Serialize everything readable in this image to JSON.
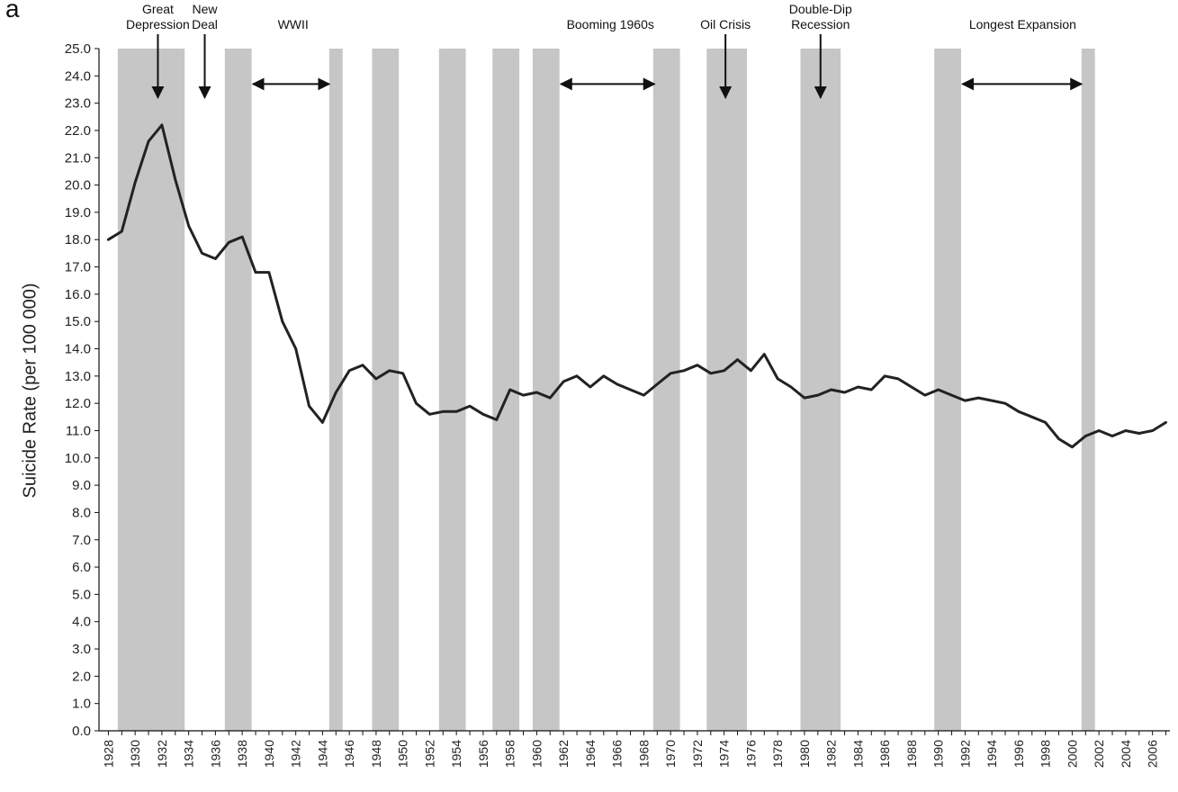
{
  "panel_letter": "a",
  "chart_data": {
    "type": "line",
    "title": "",
    "xlabel": "",
    "ylabel": "Suicide Rate (per 100 000)",
    "xlim": [
      1927.3,
      2007.3
    ],
    "ylim": [
      0,
      25
    ],
    "y_tick_step": 1.0,
    "y_tick_decimals": 1,
    "x_ticks": [
      1928,
      1930,
      1932,
      1934,
      1936,
      1938,
      1940,
      1942,
      1944,
      1946,
      1948,
      1950,
      1952,
      1954,
      1956,
      1958,
      1960,
      1962,
      1964,
      1966,
      1968,
      1970,
      1972,
      1974,
      1976,
      1978,
      1980,
      1982,
      1984,
      1986,
      1988,
      1990,
      1992,
      1994,
      1996,
      1998,
      2000,
      2002,
      2004,
      2006
    ],
    "grid": false,
    "legend": "none",
    "line_color": "#222222",
    "band_color": "#c6c6c6",
    "recession_bands": [
      [
        1928.7,
        1933.7
      ],
      [
        1936.7,
        1938.7
      ],
      [
        1944.5,
        1945.5
      ],
      [
        1947.7,
        1949.7
      ],
      [
        1952.7,
        1954.7
      ],
      [
        1956.7,
        1958.7
      ],
      [
        1959.7,
        1961.7
      ],
      [
        1968.7,
        1970.7
      ],
      [
        1972.7,
        1975.7
      ],
      [
        1979.7,
        1982.7
      ],
      [
        1989.7,
        1991.7
      ],
      [
        2000.7,
        2001.7
      ]
    ],
    "series": [
      {
        "name": "",
        "x": [
          1928,
          1929,
          1930,
          1931,
          1932,
          1933,
          1934,
          1935,
          1936,
          1937,
          1938,
          1939,
          1940,
          1941,
          1942,
          1943,
          1944,
          1945,
          1946,
          1947,
          1948,
          1949,
          1950,
          1951,
          1952,
          1953,
          1954,
          1955,
          1956,
          1957,
          1958,
          1959,
          1960,
          1961,
          1962,
          1963,
          1964,
          1965,
          1966,
          1967,
          1968,
          1969,
          1970,
          1971,
          1972,
          1973,
          1974,
          1975,
          1976,
          1977,
          1978,
          1979,
          1980,
          1981,
          1982,
          1983,
          1984,
          1985,
          1986,
          1987,
          1988,
          1989,
          1990,
          1991,
          1992,
          1993,
          1994,
          1995,
          1996,
          1997,
          1998,
          1999,
          2000,
          2001,
          2002,
          2003,
          2004,
          2005,
          2006,
          2007
        ],
        "values": [
          18.0,
          18.3,
          20.1,
          21.6,
          22.2,
          20.2,
          18.5,
          17.5,
          17.3,
          17.9,
          18.1,
          16.8,
          16.8,
          15.0,
          14.0,
          11.9,
          11.3,
          12.4,
          13.2,
          13.4,
          12.9,
          13.2,
          13.1,
          12.0,
          11.6,
          11.7,
          11.7,
          11.9,
          11.6,
          11.4,
          12.5,
          12.3,
          12.4,
          12.2,
          12.8,
          13.0,
          12.6,
          13.0,
          12.7,
          12.5,
          12.3,
          12.7,
          13.1,
          13.2,
          13.4,
          13.1,
          13.2,
          13.6,
          13.2,
          13.8,
          12.9,
          12.6,
          12.2,
          12.3,
          12.5,
          12.4,
          12.6,
          12.5,
          13.0,
          12.9,
          12.6,
          12.3,
          12.5,
          12.3,
          12.1,
          12.2,
          12.1,
          12.0,
          11.7,
          11.5,
          11.3,
          10.7,
          10.4,
          10.8,
          11.0,
          10.8,
          11.0,
          10.9,
          11.0,
          11.3
        ]
      }
    ],
    "annotations": [
      {
        "lines": [
          "Great",
          "Depression"
        ],
        "x": 1931.7,
        "kind": "down",
        "arrow_to_y": 23.2
      },
      {
        "lines": [
          "New",
          "Deal"
        ],
        "x": 1935.2,
        "kind": "down",
        "arrow_to_y": 23.2
      },
      {
        "lines": [
          "WWII"
        ],
        "x": 1941.8,
        "kind": "range",
        "from": 1938.8,
        "to": 1944.5,
        "arrow_y": 23.7
      },
      {
        "lines": [
          "Booming 1960s"
        ],
        "x": 1965.5,
        "kind": "range",
        "from": 1961.8,
        "to": 1968.8,
        "arrow_y": 23.7
      },
      {
        "lines": [
          "Oil Crisis"
        ],
        "x": 1974.1,
        "kind": "down",
        "arrow_to_y": 23.2
      },
      {
        "lines": [
          "Double-Dip",
          "Recession"
        ],
        "x": 1981.2,
        "kind": "down",
        "arrow_to_y": 23.2
      },
      {
        "lines": [
          "Longest Expansion"
        ],
        "x": 1996.3,
        "kind": "range",
        "from": 1991.8,
        "to": 2000.7,
        "arrow_y": 23.7
      }
    ]
  }
}
